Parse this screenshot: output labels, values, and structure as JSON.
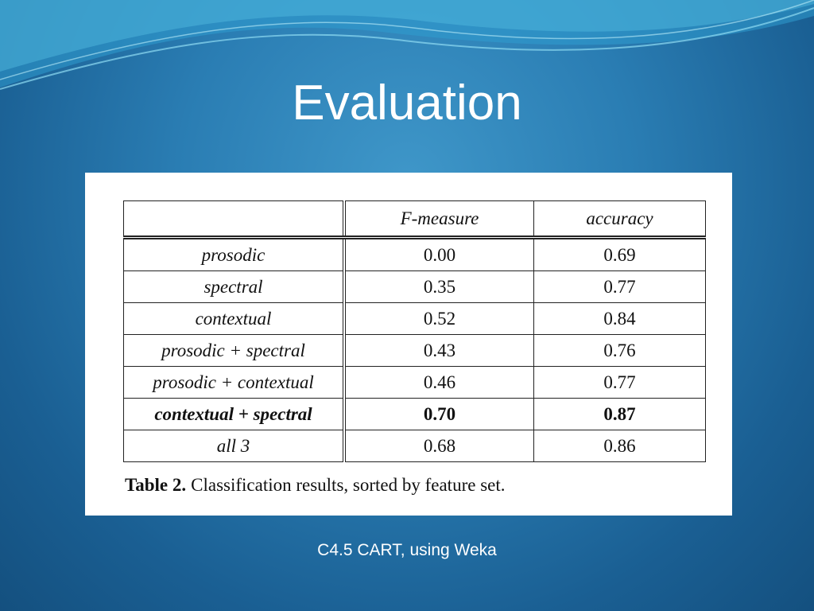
{
  "title": "Evaluation",
  "table": {
    "header": [
      "",
      "F-measure",
      "accuracy"
    ],
    "rows": [
      [
        "prosodic",
        "0.00",
        "0.69"
      ],
      [
        "spectral",
        "0.35",
        "0.77"
      ],
      [
        "contextual",
        "0.52",
        "0.84"
      ],
      [
        "prosodic + spectral",
        "0.43",
        "0.76"
      ],
      [
        "prosodic + contextual",
        "0.46",
        "0.77"
      ],
      [
        "contextual + spectral",
        "0.70",
        "0.87"
      ],
      [
        "all 3",
        "0.68",
        "0.86"
      ]
    ]
  },
  "caption": {
    "label": "Table 2.",
    "text": "Classification results, sorted by feature set."
  },
  "footnote": "C4.5 CART, using Weka"
}
